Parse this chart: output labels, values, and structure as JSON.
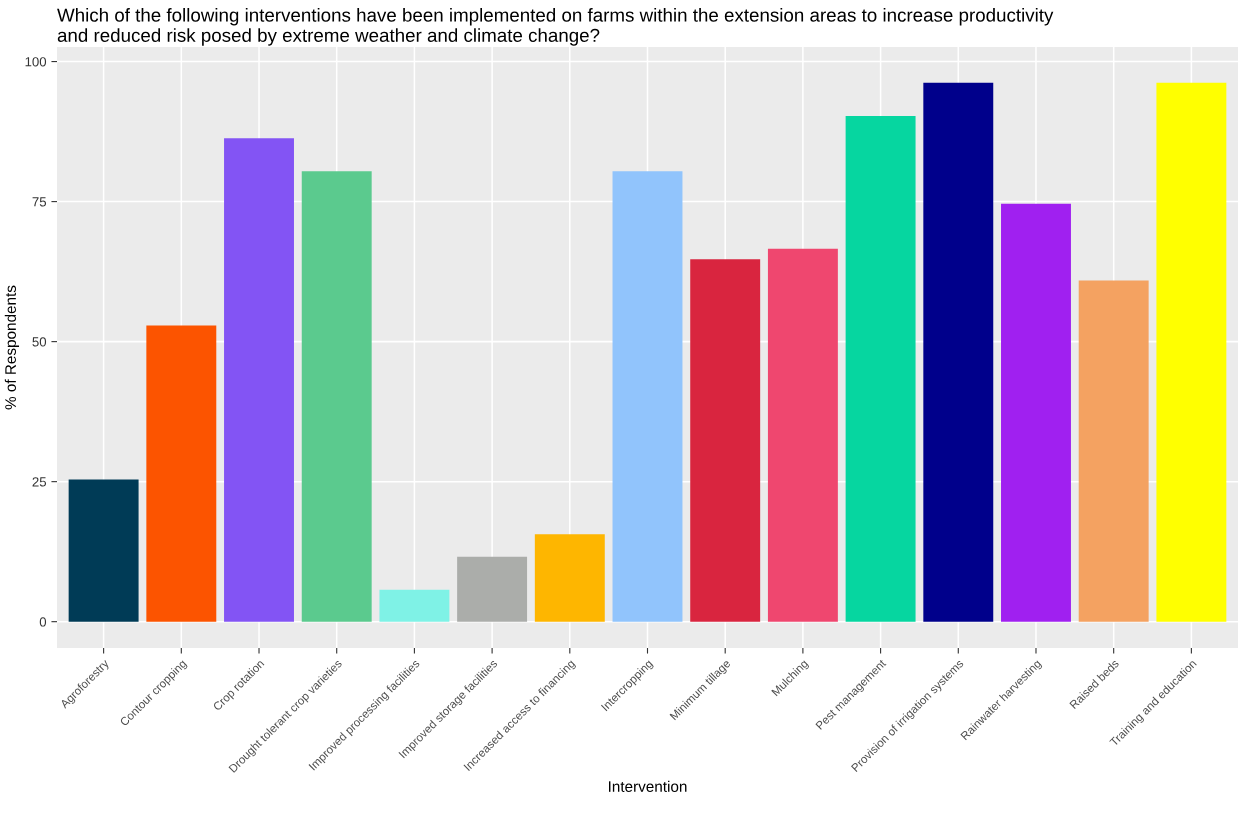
{
  "chart_data": {
    "type": "bar",
    "title": "Which of the following interventions have been implemented on farms within the extension areas to increase productivity\nand reduced risk posed by extreme weather and climate change?",
    "xlabel": "Intervention",
    "ylabel": "% of Respondents",
    "categories": [
      "Agroforestry",
      "Contour cropping",
      "Crop rotation",
      "Drought tolerant crop varieties",
      "Improved processing facilities",
      "Improved storage facilities",
      "Increased access to financing",
      "Intercropping",
      "Minimum tillage",
      "Mulching",
      "Pest management",
      "Provision of irrigation systems",
      "Rainwater harvesting",
      "Raised beds",
      "Training and education"
    ],
    "values": [
      25.4,
      52.9,
      86.3,
      80.4,
      5.7,
      11.6,
      15.6,
      80.4,
      64.7,
      66.6,
      90.3,
      96.2,
      74.6,
      60.9,
      96.2
    ],
    "colors": [
      "#003b56",
      "#fc5400",
      "#8354f4",
      "#5bca8e",
      "#7ff2e6",
      "#abadaa",
      "#feb600",
      "#91c4fc",
      "#d9253f",
      "#ef476f",
      "#06d6a0",
      "#00008b",
      "#a020f0",
      "#f4a261",
      "#ffff00"
    ],
    "ylim": [
      -4.7,
      102.6
    ],
    "yticks": [
      0,
      25,
      50,
      75,
      100
    ],
    "grid": true
  }
}
